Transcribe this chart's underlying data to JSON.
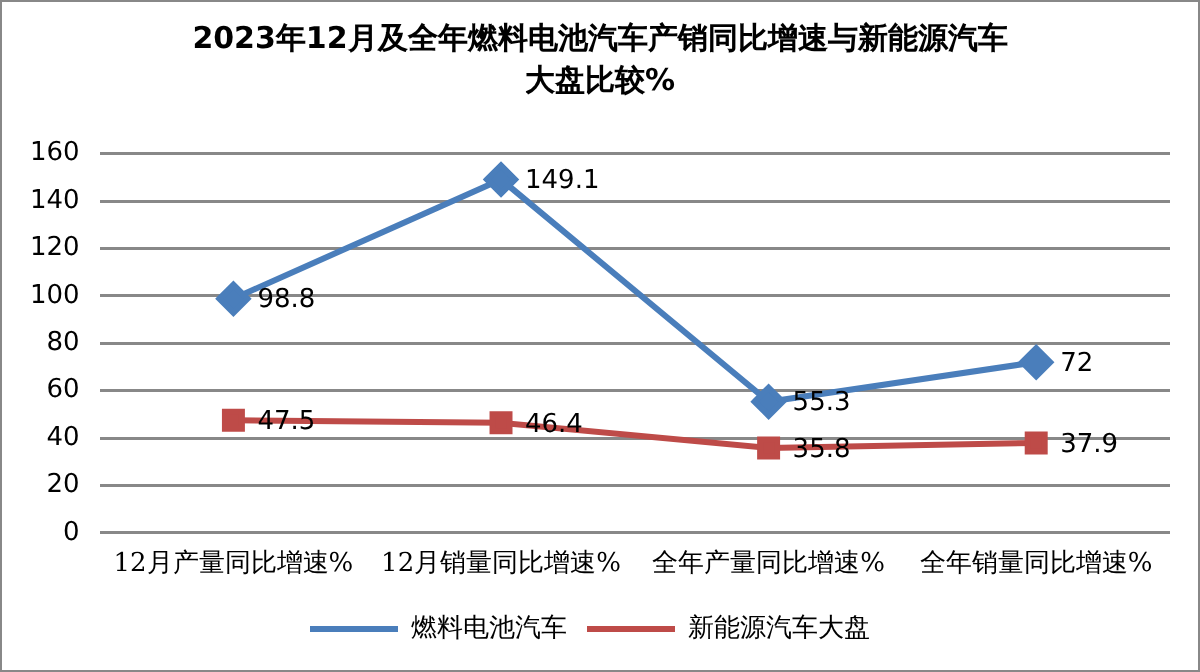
{
  "chart_data": {
    "type": "line",
    "title": "2023年12月及全年燃料电池汽车产销同比增速与新能源汽车大盘比较%",
    "categories": [
      "12月产量同比增速%",
      "12月销量同比增速%",
      "全年产量同比增速%",
      "全年销量同比增速%"
    ],
    "series": [
      {
        "name": "燃料电池汽车",
        "color": "#4a7ebb",
        "marker": "diamond",
        "values": [
          98.8,
          149.1,
          55.3,
          72
        ]
      },
      {
        "name": "新能源汽车大盘",
        "color": "#be4b48",
        "marker": "square",
        "values": [
          47.5,
          46.4,
          35.8,
          37.9
        ]
      }
    ],
    "ylim": [
      0,
      160
    ],
    "yticks": [
      0,
      20,
      40,
      60,
      80,
      100,
      120,
      140,
      160
    ],
    "grid": "y",
    "legend": "bottom",
    "data_labels": true,
    "line_style": "solid"
  }
}
